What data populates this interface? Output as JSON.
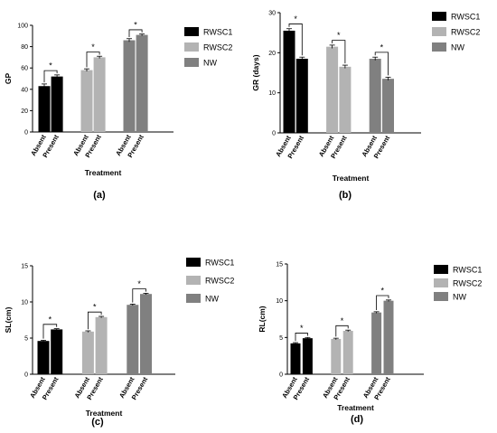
{
  "chart_data": [
    {
      "type": "bar",
      "panel_label": "(a)",
      "ylabel": "GP",
      "xlabel": "Treatment",
      "ylim": [
        0,
        100
      ],
      "yticks": [
        0,
        20,
        40,
        60,
        80,
        100
      ],
      "categories": [
        "Absent",
        "Present",
        "Absent",
        "Present",
        "Absent",
        "Present"
      ],
      "groups": [
        "RWSC1",
        "RWSC2",
        "NW"
      ],
      "values": [
        43,
        52,
        58,
        70,
        86,
        91
      ],
      "errors": [
        2,
        1.5,
        1.2,
        1,
        1.5,
        0.8
      ],
      "significance": [
        "*",
        "*",
        "*"
      ],
      "legend": [
        "RWSC1",
        "RWSC2",
        "NW"
      ],
      "colors": [
        "#000000",
        "#b3b3b3",
        "#808080"
      ]
    },
    {
      "type": "bar",
      "panel_label": "(b)",
      "ylabel": "GR (days)",
      "xlabel": "Treatment",
      "ylim": [
        0,
        30
      ],
      "yticks": [
        0,
        10,
        20,
        30
      ],
      "categories": [
        "Absent",
        "Present",
        "Absent",
        "Present",
        "Absent",
        "Present"
      ],
      "groups": [
        "RWSC1",
        "RWSC2",
        "NW"
      ],
      "values": [
        25.5,
        18.5,
        21.5,
        16.5,
        18.5,
        13.5
      ],
      "errors": [
        0.5,
        0.4,
        0.4,
        0.4,
        0.4,
        0.4
      ],
      "significance": [
        "*",
        "*",
        "*"
      ],
      "legend": [
        "RWSC1",
        "RWSC2",
        "NW"
      ],
      "colors": [
        "#000000",
        "#b3b3b3",
        "#808080"
      ]
    },
    {
      "type": "bar",
      "panel_label": "(c)",
      "ylabel": "SL(cm)",
      "xlabel": "Treatment",
      "ylim": [
        0,
        15
      ],
      "yticks": [
        0,
        5,
        10,
        15
      ],
      "categories": [
        "Absent",
        "Present",
        "Absent",
        "Present",
        "Absent",
        "Present"
      ],
      "groups": [
        "RWSC1",
        "RWSC2",
        "NW"
      ],
      "values": [
        4.6,
        6.2,
        5.9,
        7.9,
        9.6,
        11.1
      ],
      "errors": [
        0.1,
        0.1,
        0.1,
        0.1,
        0.1,
        0.1
      ],
      "significance": [
        "*",
        "*",
        "*"
      ],
      "legend": [
        "RWSC1",
        "RWSC2",
        "NW"
      ],
      "colors": [
        "#000000",
        "#b3b3b3",
        "#808080"
      ]
    },
    {
      "type": "bar",
      "panel_label": "(d)",
      "ylabel": "RL(cm)",
      "xlabel": "Treatment",
      "ylim": [
        0,
        15
      ],
      "yticks": [
        0,
        5,
        10,
        15
      ],
      "categories": [
        "Absent",
        "Present",
        "Absent",
        "Present",
        "Absent",
        "Present"
      ],
      "groups": [
        "RWSC1",
        "RWSC2",
        "NW"
      ],
      "values": [
        4.2,
        4.9,
        4.8,
        5.9,
        8.4,
        10
      ],
      "errors": [
        0.1,
        0.1,
        0.1,
        0.1,
        0.1,
        0.1
      ],
      "significance": [
        "*",
        "*",
        "*"
      ],
      "legend": [
        "RWSC1",
        "RWSC2",
        "NW"
      ],
      "colors": [
        "#000000",
        "#b3b3b3",
        "#808080"
      ]
    }
  ]
}
